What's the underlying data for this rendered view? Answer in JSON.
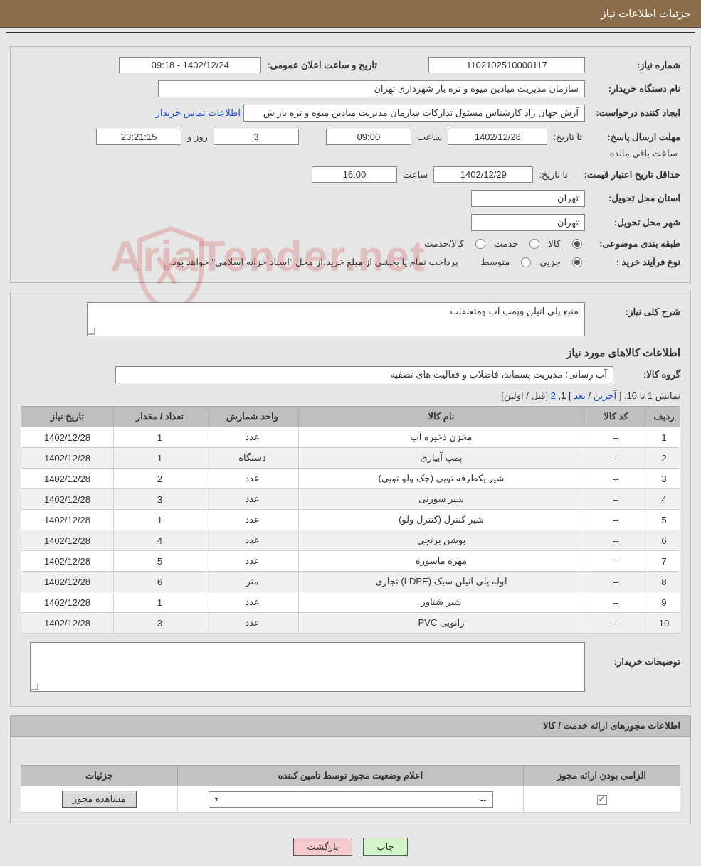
{
  "titleBar": "جزئیات اطلاعات نیاز",
  "info": {
    "needNumber_label": "شماره نیاز:",
    "needNumber": "1102102510000117",
    "announceDateTime_label": "تاریخ و ساعت اعلان عمومی:",
    "announceDateTime": "1402/12/24 - 09:18",
    "buyerOrg_label": "نام دستگاه خریدار:",
    "buyerOrg": "سازمان مدیریت میادین میوه و تره بار شهرداری تهران",
    "requester_label": "ایجاد کننده درخواست:",
    "requester": "آرش جهان زاد کارشناس مسئول تدارکات سازمان مدیریت میادین میوه و تره بار ش",
    "buyerContactLink": "اطلاعات تماس خریدار",
    "deadline_label": "مهلت ارسال پاسخ:",
    "deadline_to": "تا تاریخ:",
    "deadline_date": "1402/12/28",
    "time_lbl": "ساعت",
    "deadline_time": "09:00",
    "days_count": "3",
    "days_and": "روز و",
    "countdown": "23:21:15",
    "remaining": "ساعت باقی مانده",
    "minValidity_label": "حداقل تاریخ اعتبار قیمت:",
    "minValidity_to": "تا تاریخ:",
    "minValidity_date": "1402/12/29",
    "minValidity_time": "16:00",
    "province_label": "استان محل تحویل:",
    "province": "تهران",
    "city_label": "شهر محل تحویل:",
    "city": "تهران",
    "classification_label": "طبقه بندی موضوعی:",
    "class_kala": "کالا",
    "class_khadamat": "خدمت",
    "class_kalakhadamat": "کالا/خدمت",
    "processType_label": "نوع فرآیند خرید :",
    "proc_partial": "جزیی",
    "proc_medium": "متوسط",
    "proc_note": "پرداخت تمام یا بخشی از مبلغ خرید،از محل \"اسناد خزانه اسلامی\" خواهد بود."
  },
  "details": {
    "generalDesc_label": "شرح کلی نیاز:",
    "generalDesc": "منبع پلی اتیلن وپمپ آب ومتعلقات",
    "itemsHeading": "اطلاعات کالاهای مورد نیاز",
    "group_label": "گروه کالا:",
    "group": "آب رسانی؛ مدیریت پسماند، فاضلاب و فعالیت های تصفیه",
    "pagination_prefix": "نمایش 1 تا 10.",
    "pagination_last": "آخرین",
    "pagination_next": "بعد",
    "pagination_current": "1",
    "pagination_p2": "2",
    "pagination_prev": "قبل",
    "pagination_first": "اولین",
    "columns": {
      "idx": "ردیف",
      "code": "کد کالا",
      "name": "نام کالا",
      "unit": "واحد شمارش",
      "qty": "تعداد / مقدار",
      "date": "تاریخ نیاز"
    },
    "rows": [
      {
        "idx": "1",
        "code": "--",
        "name": "مخزن ذخیره آب",
        "unit": "عدد",
        "qty": "1",
        "date": "1402/12/28"
      },
      {
        "idx": "2",
        "code": "--",
        "name": "پمپ آبیاری",
        "unit": "دستگاه",
        "qty": "1",
        "date": "1402/12/28"
      },
      {
        "idx": "3",
        "code": "--",
        "name": "شیر یکطرفه توپی (چک ولو توپی)",
        "unit": "عدد",
        "qty": "2",
        "date": "1402/12/28"
      },
      {
        "idx": "4",
        "code": "--",
        "name": "شیر سوزنی",
        "unit": "عدد",
        "qty": "3",
        "date": "1402/12/28"
      },
      {
        "idx": "5",
        "code": "--",
        "name": "شیر کنترل (کنترل ولو)",
        "unit": "عدد",
        "qty": "1",
        "date": "1402/12/28"
      },
      {
        "idx": "6",
        "code": "--",
        "name": "بوشن برنجی",
        "unit": "عدد",
        "qty": "4",
        "date": "1402/12/28"
      },
      {
        "idx": "7",
        "code": "--",
        "name": "مهره ماسوره",
        "unit": "عدد",
        "qty": "5",
        "date": "1402/12/28"
      },
      {
        "idx": "8",
        "code": "--",
        "name": "لوله پلی اتیلن سبک (LDPE) تجاری",
        "unit": "متر",
        "qty": "6",
        "date": "1402/12/28"
      },
      {
        "idx": "9",
        "code": "--",
        "name": "شیر شناور",
        "unit": "عدد",
        "qty": "1",
        "date": "1402/12/28"
      },
      {
        "idx": "10",
        "code": "--",
        "name": "زانویی PVC",
        "unit": "عدد",
        "qty": "3",
        "date": "1402/12/28"
      }
    ],
    "buyerNotes_label": "توضیحات خریدار:",
    "buyerNotes": ""
  },
  "license": {
    "sectionTitle": "اطلاعات مجوزهای ارائه خدمت / کالا",
    "col_required": "الزامی بودن ارائه مجوز",
    "col_status": "اعلام وضعیت مجوز توسط تامین کننده",
    "col_details": "جزئیات",
    "select_value": "--",
    "view_btn": "مشاهده مجوز"
  },
  "buttons": {
    "print": "چاپ",
    "back": "بازگشت"
  },
  "watermark_text": "AriaTender.net"
}
